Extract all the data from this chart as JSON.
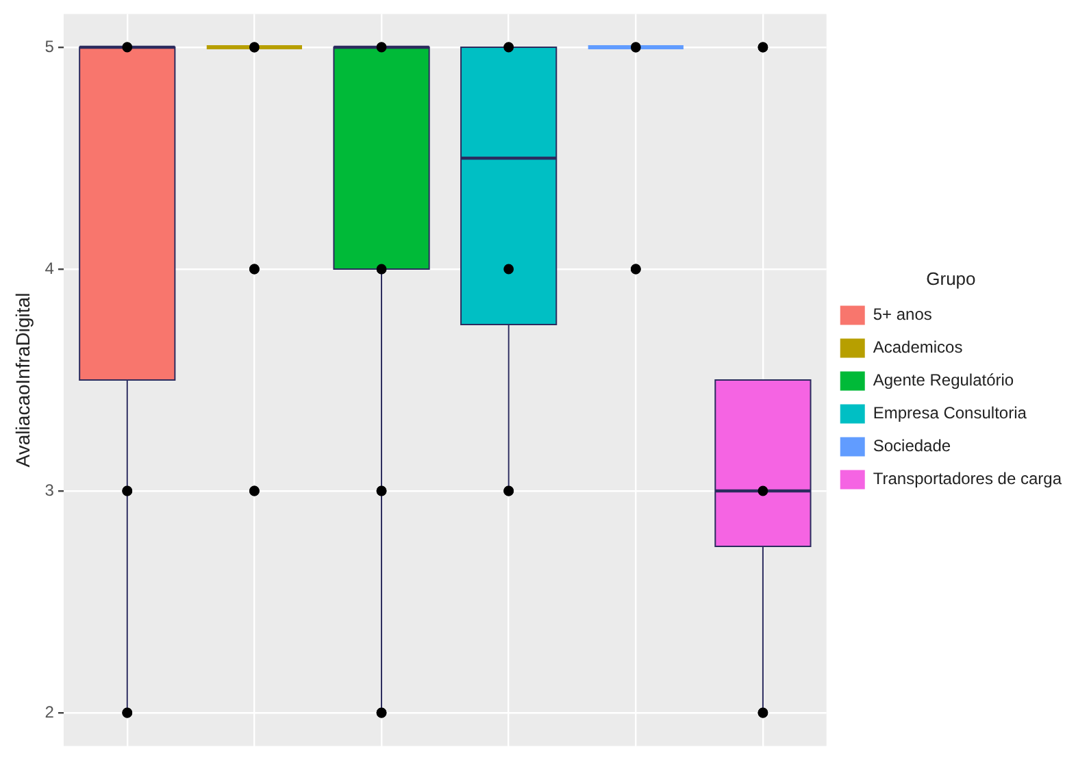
{
  "chart_data": {
    "type": "box",
    "ylabel": "AvaliacaoInfraDigital",
    "legend_title": "Grupo",
    "legend": "right",
    "grid": true,
    "tick_labels": "y",
    "categories": [
      null,
      null,
      null,
      null,
      null,
      null
    ],
    "ylim": [
      1.85,
      5.15
    ],
    "yticks": [
      2,
      3,
      4,
      5
    ],
    "series": [
      {
        "name": "5+ anos",
        "color": "#f8766d",
        "boxes": [
          {
            "low": 2,
            "q1": 3.5,
            "median": 5,
            "q3": 5,
            "high": 5
          },
          null,
          null,
          null,
          null,
          null
        ]
      },
      {
        "name": "Academicos",
        "color": "#b79f00",
        "boxes": [
          null,
          {
            "low": 5,
            "q1": 5,
            "median": 5,
            "q3": 5,
            "high": 5
          },
          null,
          null,
          null,
          null
        ]
      },
      {
        "name": "Agente Regulatório",
        "color": "#00ba38",
        "boxes": [
          null,
          null,
          {
            "low": 2,
            "q1": 4,
            "median": 5,
            "q3": 5,
            "high": 5
          },
          null,
          null,
          null
        ]
      },
      {
        "name": "Empresa Consultoria",
        "color": "#00bfc4",
        "boxes": [
          null,
          null,
          null,
          {
            "low": 3,
            "q1": 3.75,
            "median": 4.5,
            "q3": 5,
            "high": 5
          },
          null,
          null
        ]
      },
      {
        "name": "Sociedade",
        "color": "#619cff",
        "boxes": [
          null,
          null,
          null,
          null,
          {
            "low": 5,
            "q1": 5,
            "median": 5,
            "q3": 5,
            "high": 5
          },
          null
        ]
      },
      {
        "name": "Transportadores de carga",
        "color": "#f564e3",
        "boxes": [
          null,
          null,
          null,
          null,
          null,
          {
            "low": 2,
            "q1": 2.75,
            "median": 3,
            "q3": 3.5,
            "high": 3.5
          }
        ]
      },
      {
        "type": "scatter",
        "color": "#000000",
        "marker": "circle",
        "values": [
          5,
          5,
          5,
          5,
          5,
          5
        ]
      },
      {
        "type": "scatter",
        "color": "#000000",
        "marker": "circle",
        "values": [
          3,
          4,
          4,
          4,
          4,
          3
        ]
      },
      {
        "type": "scatter",
        "color": "#000000",
        "marker": "circle",
        "values": [
          2,
          3,
          3,
          3,
          null,
          2
        ]
      },
      {
        "type": "scatter",
        "color": "#000000",
        "marker": "circle",
        "values": [
          null,
          null,
          2,
          null,
          null,
          null
        ]
      }
    ]
  }
}
